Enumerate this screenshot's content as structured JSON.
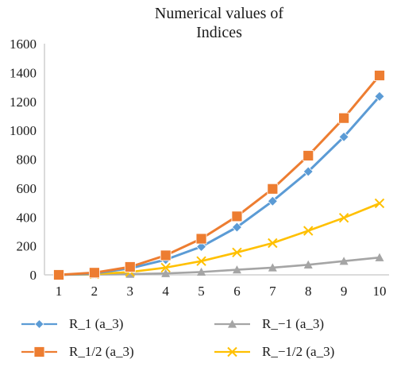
{
  "chart_data": {
    "type": "line",
    "title": [
      "Numerical values of",
      "Indices"
    ],
    "xlabel": "",
    "ylabel": "",
    "x": [
      1,
      2,
      3,
      4,
      5,
      6,
      7,
      8,
      9,
      10
    ],
    "x_ticks": [
      "1",
      "2",
      "3",
      "4",
      "5",
      "6",
      "7",
      "8",
      "9",
      "10"
    ],
    "y_ticks": [
      "0",
      "200",
      "400",
      "600",
      "800",
      "1000",
      "1200",
      "1400",
      "1600"
    ],
    "ylim": [
      0,
      1600
    ],
    "grid": false,
    "legend_position": "bottom",
    "series": [
      {
        "name": "R_1 (a_3)",
        "color": "#5b9bd5",
        "marker": "diamond",
        "values": [
          0,
          10,
          45,
          105,
          195,
          330,
          510,
          715,
          955,
          1235
        ]
      },
      {
        "name": "R_1/2 (a_3)",
        "color": "#ed7d31",
        "marker": "square",
        "values": [
          0,
          15,
          55,
          135,
          250,
          405,
          595,
          825,
          1085,
          1380
        ]
      },
      {
        "name": "R_−1 (a_3)",
        "color": "#a5a5a5",
        "marker": "triangle",
        "values": [
          0,
          2,
          5,
          10,
          20,
          35,
          50,
          70,
          95,
          120
        ]
      },
      {
        "name": "R_−1/2 (a_3)",
        "color": "#ffc000",
        "marker": "x",
        "values": [
          0,
          5,
          20,
          50,
          95,
          155,
          220,
          305,
          395,
          495
        ]
      }
    ]
  }
}
